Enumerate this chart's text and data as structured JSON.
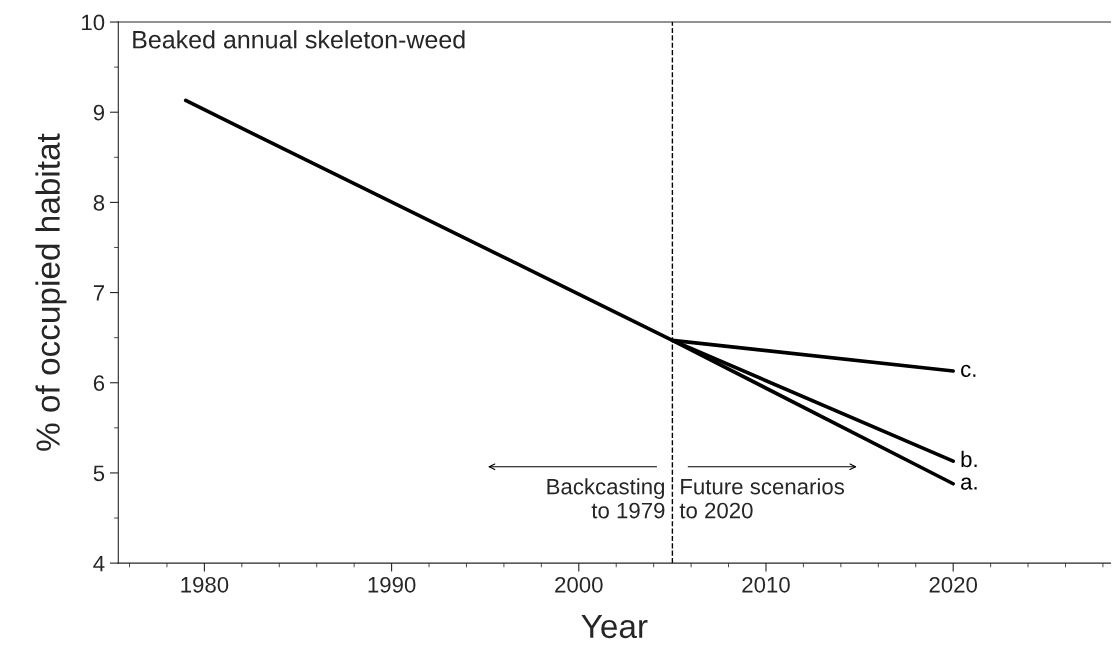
{
  "chart_data": {
    "type": "line",
    "title": "Beaked annual skeleton-weed",
    "xlabel": "Year",
    "ylabel": "% of occupied habitat",
    "series": [
      {
        "name": "a.",
        "color": "#000000",
        "x": [
          1979,
          2005,
          2020
        ],
        "values": [
          9.13,
          6.47,
          4.88
        ]
      },
      {
        "name": "b.",
        "color": "#000000",
        "x": [
          2005,
          2020
        ],
        "values": [
          6.47,
          5.13
        ]
      },
      {
        "name": "c.",
        "color": "#000000",
        "x": [
          2005,
          2020
        ],
        "values": [
          6.47,
          6.13
        ]
      }
    ],
    "ref_lines": [
      {
        "axis": "x",
        "value": 2005,
        "color": "#000000",
        "line_style": "dashed"
      }
    ],
    "annotations": [
      "Backcasting\nto 1979",
      "Future scenarios\nto 2020"
    ],
    "xlim": [
      1975.4,
      2028.4
    ],
    "xticks": [
      1980,
      1990,
      2000,
      2010,
      2020
    ],
    "ylim": [
      4,
      10
    ],
    "yticks": [
      4,
      5,
      6,
      7,
      8,
      9,
      10
    ],
    "grid": false,
    "legend": false,
    "marker": "none",
    "line_style": "solid"
  }
}
